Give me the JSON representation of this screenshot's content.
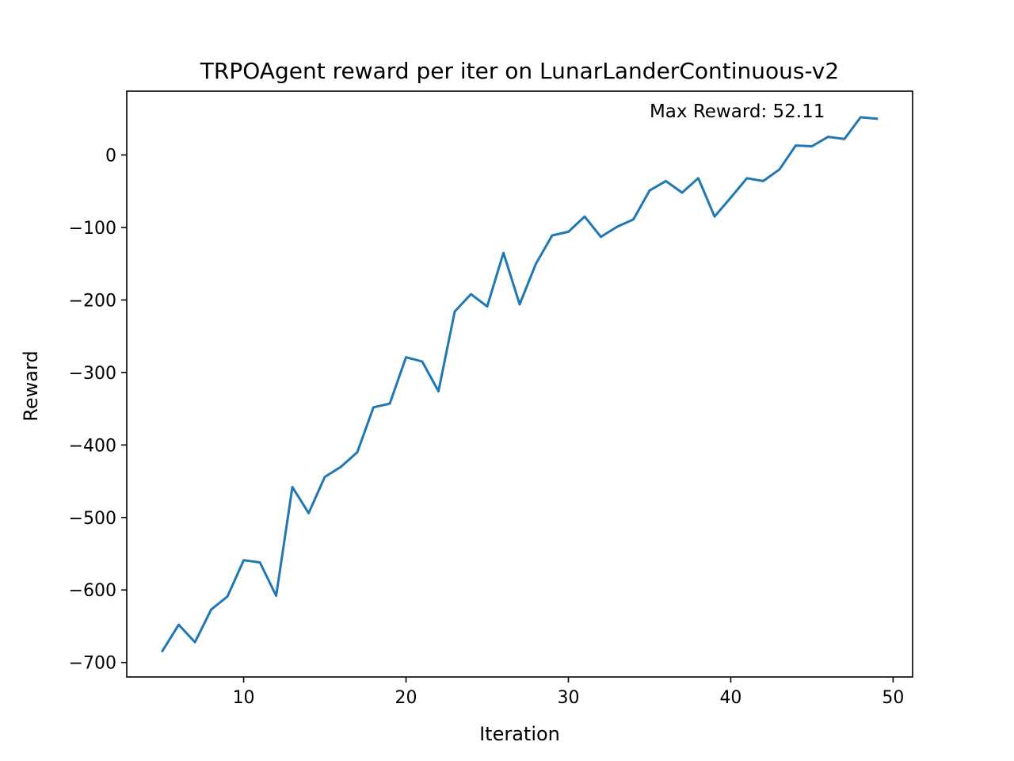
{
  "chart_data": {
    "type": "line",
    "title": "TRPOAgent reward per iter on LunarLanderContinuous-v2",
    "xlabel": "Iteration",
    "ylabel": "Reward",
    "xlim": [
      2.8,
      51.2
    ],
    "ylim": [
      -720,
      88
    ],
    "xticks": [
      10,
      20,
      30,
      40,
      50
    ],
    "yticks": [
      0,
      -100,
      -200,
      -300,
      -400,
      -500,
      -600,
      -700
    ],
    "xtick_labels": [
      "10",
      "20",
      "30",
      "40",
      "50"
    ],
    "ytick_labels": [
      "0",
      "−100",
      "−200",
      "−300",
      "−400",
      "−500",
      "−600",
      "−700"
    ],
    "grid": false,
    "annotation": {
      "text": "Max Reward: 52.11",
      "x": 35,
      "y": 52.11
    },
    "series": [
      {
        "color": "#1f77b4",
        "x": [
          5,
          6,
          7,
          8,
          9,
          10,
          11,
          12,
          13,
          14,
          15,
          16,
          17,
          18,
          19,
          20,
          21,
          22,
          23,
          24,
          25,
          26,
          27,
          28,
          29,
          30,
          31,
          32,
          33,
          34,
          35,
          36,
          37,
          38,
          39,
          40,
          41,
          42,
          43,
          44,
          45,
          46,
          47,
          48,
          49
        ],
        "y": [
          -684,
          -648,
          -672,
          -627,
          -609,
          -559,
          -562,
          -608,
          -458,
          -494,
          -444,
          -430,
          -410,
          -348,
          -343,
          -279,
          -285,
          -326,
          -216,
          -192,
          -209,
          -135,
          -206,
          -150,
          -111,
          -106,
          -85,
          -113,
          -99,
          -89,
          -49,
          -36,
          -52,
          -32,
          -85,
          -59,
          -32,
          -36,
          -20,
          13,
          12,
          25,
          22,
          52,
          50
        ]
      }
    ]
  }
}
